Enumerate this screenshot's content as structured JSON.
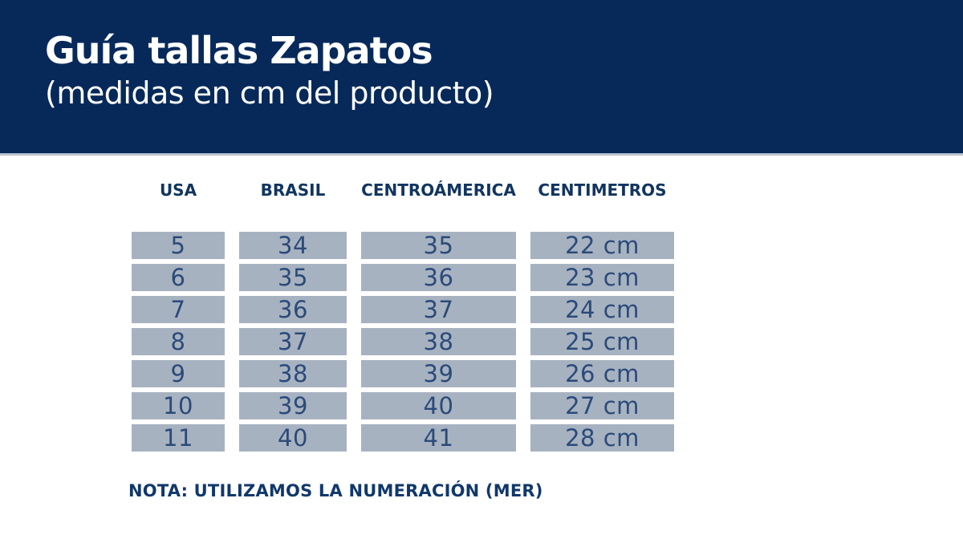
{
  "banner": {
    "title": "Guía tallas Zapatos",
    "subtitle": "(medidas en cm del producto)"
  },
  "table": {
    "headers": [
      "USA",
      "BRASIL",
      "CENTROÁMERICA",
      "CENTIMETROS"
    ],
    "rows": [
      [
        "5",
        "34",
        "35",
        "22 cm"
      ],
      [
        "6",
        "35",
        "36",
        "23 cm"
      ],
      [
        "7",
        "36",
        "37",
        "24 cm"
      ],
      [
        "8",
        "37",
        "38",
        "25 cm"
      ],
      [
        "9",
        "38",
        "39",
        "26 cm"
      ],
      [
        "10",
        "39",
        "40",
        "27 cm"
      ],
      [
        "11",
        "40",
        "41",
        "28 cm"
      ]
    ]
  },
  "note": {
    "text": "NOTA: UTILIZAMOS LA NUMERACIÓN (MER)"
  },
  "theme": {
    "banner_bg": "#07295a",
    "banner_fg": "#ffffff",
    "divider": "#b9c2cd",
    "header_fg": "#113560",
    "cell_bg": "#a7b2c1",
    "cell_fg": "#2b4a79",
    "note_fg": "#11386b"
  }
}
